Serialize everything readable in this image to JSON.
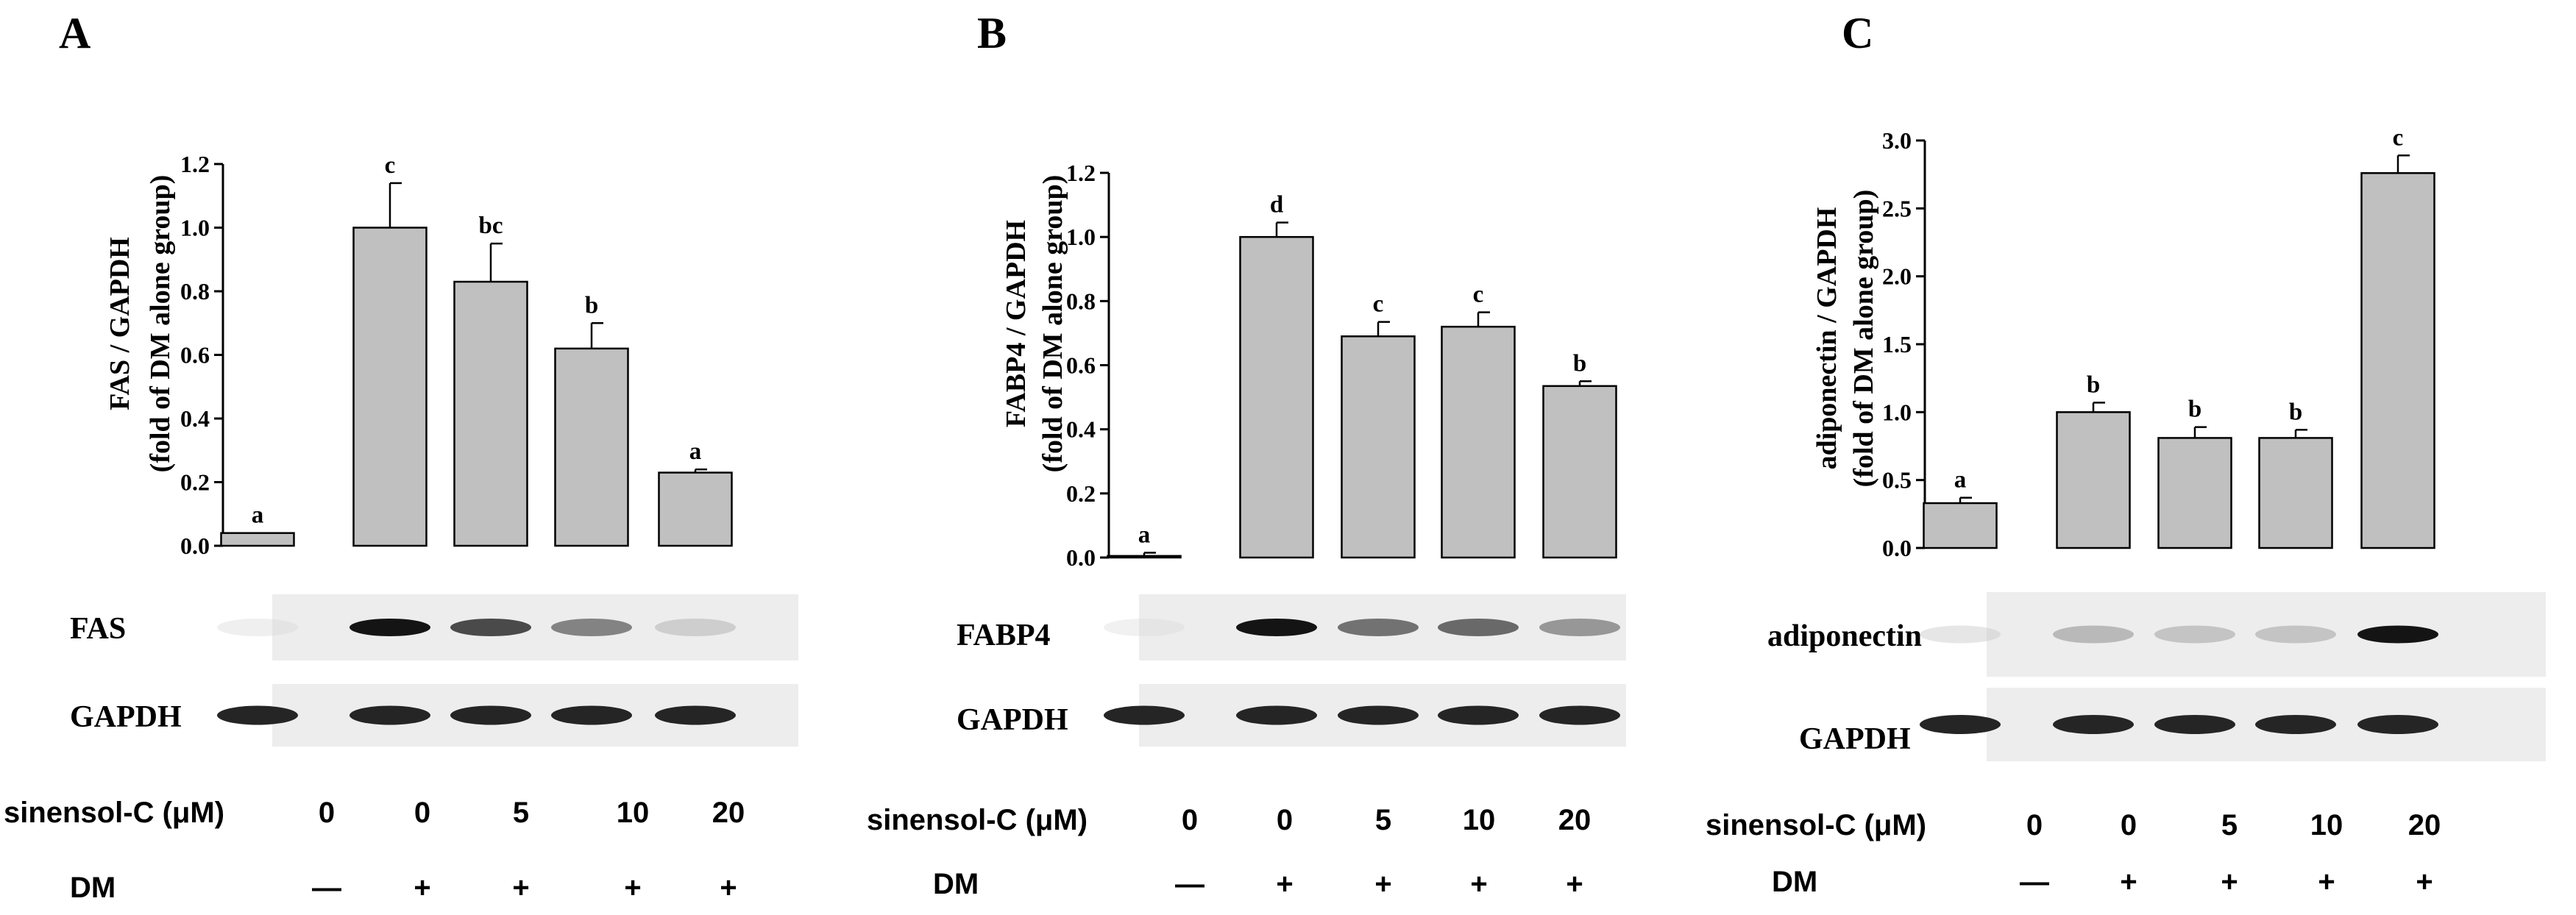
{
  "chart_data": [
    {
      "panel": "A",
      "type": "bar",
      "ylabel": "FAS / GAPDH",
      "ylabel2": "(fold of DM alone group)",
      "ylim": [
        0,
        1.2
      ],
      "yticks": [
        "0.0",
        "0.2",
        "0.4",
        "0.6",
        "0.8",
        "1.0",
        "1.2"
      ],
      "values": [
        0.04,
        1.0,
        0.83,
        0.62,
        0.23
      ],
      "errors": [
        0.0,
        0.14,
        0.12,
        0.08,
        0.01
      ],
      "letters": [
        "a",
        "c",
        "bc",
        "b",
        "a"
      ],
      "blots": [
        "FAS",
        "GAPDH"
      ],
      "bar_color": "#c0c0c0"
    },
    {
      "panel": "B",
      "type": "bar",
      "ylabel": "FABP4 / GAPDH",
      "ylabel2": "(fold of DM alone group)",
      "ylim": [
        0,
        1.2
      ],
      "yticks": [
        "0.0",
        "0.2",
        "0.4",
        "0.6",
        "0.8",
        "1.0",
        "1.2"
      ],
      "values": [
        0.005,
        1.0,
        0.69,
        0.72,
        0.535
      ],
      "errors": [
        0.01,
        0.045,
        0.045,
        0.045,
        0.015
      ],
      "letters": [
        "a",
        "d",
        "c",
        "c",
        "b"
      ],
      "blots": [
        "FABP4",
        "GAPDH"
      ],
      "bar_color": "#c0c0c0"
    },
    {
      "panel": "C",
      "type": "bar",
      "ylabel": "adiponectin / GAPDH",
      "ylabel2": "(fold of DM alone group)",
      "ylim": [
        0,
        3.0
      ],
      "yticks": [
        "0.0",
        "0.5",
        "1.0",
        "1.5",
        "2.0",
        "2.5",
        "3.0"
      ],
      "values": [
        0.33,
        1.0,
        0.81,
        0.81,
        2.76
      ],
      "errors": [
        0.04,
        0.07,
        0.08,
        0.06,
        0.13
      ],
      "letters": [
        "a",
        "b",
        "b",
        "b",
        "c"
      ],
      "blots": [
        "adiponectin",
        "GAPDH"
      ],
      "bar_color": "#c0c0c0"
    }
  ],
  "treatment": {
    "sinensol_label": "sinensol-C (μM)",
    "sinensol_values": [
      "0",
      "0",
      "5",
      "10",
      "20"
    ],
    "dm_label": "DM",
    "dm_values": [
      "—",
      "+",
      "+",
      "+",
      "+"
    ]
  }
}
